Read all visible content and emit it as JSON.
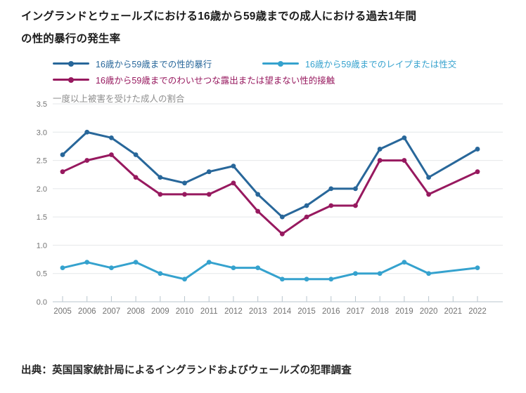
{
  "title": "イングランドとウェールズにおける16歳から59歳までの成人における過去1年間の性的暴行の発生率",
  "subtitle": "一度以上被害を受けた成人の割合",
  "source": "出典：英国国家統計局によるイングランドおよびウェールズの犯罪調査",
  "colors": {
    "series_sexual_assault": "#28679a",
    "series_rape_or_penetration": "#35a2ce",
    "series_indecent_exposure_or_unwanted_touching": "#97195f",
    "gridline": "#e4e7e9",
    "axis_baseline": "#b9c6ce",
    "axis_tick": "#b9c6ce",
    "axis_label": "#737373",
    "title_text": "#1c1c1c",
    "subtitle_text": "#8e8e8e",
    "source_text": "#262626",
    "background": "#ffffff"
  },
  "chart_data": {
    "type": "line",
    "title": "イングランドとウェールズにおける16歳から59歳までの成人における過去1年間の性的暴行の発生率",
    "subtitle": "一度以上被害を受けた成人の割合",
    "source": "出典：英国国家統計局によるイングランドおよびウェールズの犯罪調査",
    "x": [
      2005,
      2006,
      2007,
      2008,
      2009,
      2010,
      2011,
      2012,
      2013,
      2014,
      2015,
      2016,
      2017,
      2018,
      2019,
      2020,
      2021,
      2022
    ],
    "series": [
      {
        "name": "16歳から59歳までの性的暴行",
        "color": "#28679a",
        "values": [
          2.6,
          3.0,
          2.9,
          2.6,
          2.2,
          2.1,
          2.3,
          2.4,
          1.9,
          1.5,
          1.7,
          2.0,
          2.0,
          2.7,
          2.9,
          2.2,
          null,
          2.7
        ]
      },
      {
        "name": "16歳から59歳までのレイプまたは性交",
        "color": "#35a2ce",
        "values": [
          0.6,
          0.7,
          0.6,
          0.7,
          0.5,
          0.4,
          0.7,
          0.6,
          0.6,
          0.4,
          0.4,
          0.4,
          0.5,
          0.5,
          0.7,
          0.5,
          null,
          0.6
        ]
      },
      {
        "name": "16歳から59歳までのわいせつな露出または望まない性的接触",
        "color": "#97195f",
        "values": [
          2.3,
          2.5,
          2.6,
          2.2,
          1.9,
          1.9,
          1.9,
          2.1,
          1.6,
          1.2,
          1.5,
          1.7,
          1.7,
          2.5,
          2.5,
          1.9,
          null,
          2.3
        ]
      }
    ],
    "ylim": [
      0,
      3.5
    ],
    "yticks": [
      0.0,
      0.5,
      1.0,
      1.5,
      2.0,
      2.5,
      3.0,
      3.5
    ],
    "xlabel": "",
    "ylabel": "",
    "grid": true,
    "legend_position": "top",
    "missing_x": [
      2021
    ]
  }
}
